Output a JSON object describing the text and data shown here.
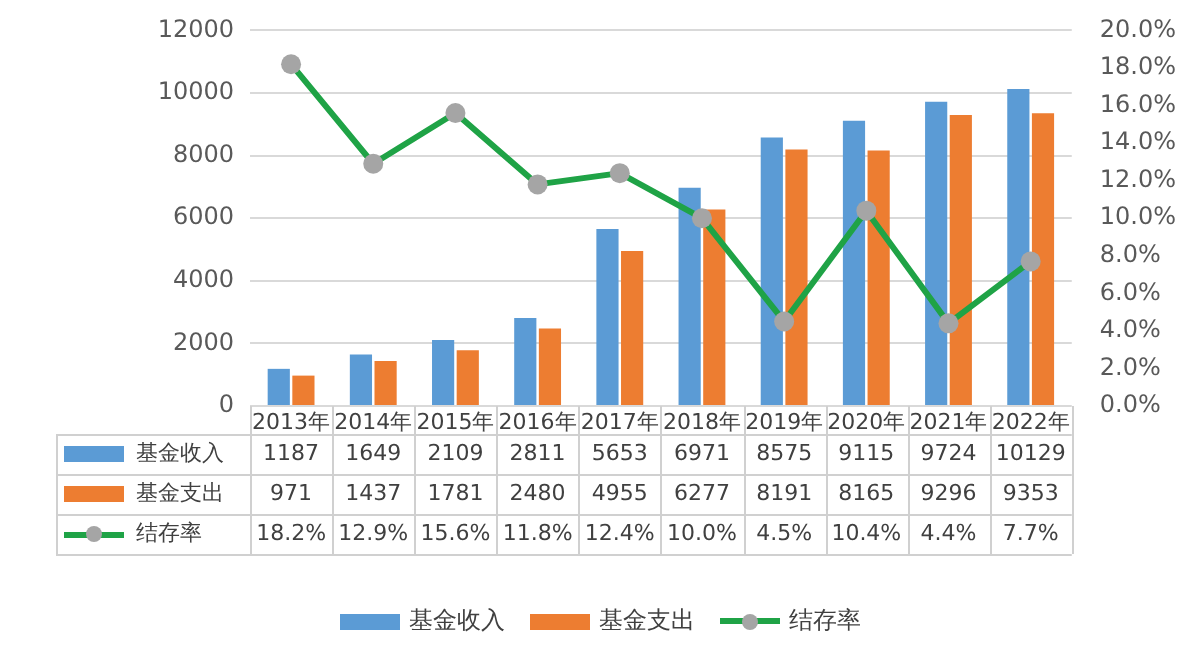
{
  "chart_data": {
    "type": "bar",
    "categories": [
      "2013年",
      "2014年",
      "2015年",
      "2016年",
      "2017年",
      "2018年",
      "2019年",
      "2020年",
      "2021年",
      "2022年"
    ],
    "series": [
      {
        "name": "基金收入",
        "color": "#5b9bd5",
        "values": [
          1187,
          1649,
          2109,
          2811,
          5653,
          6971,
          8575,
          9115,
          9724,
          10129
        ],
        "value_labels": [
          "1187",
          "1649",
          "2109",
          "2811",
          "5653",
          "6971",
          "8575",
          "9115",
          "9724",
          "10129"
        ]
      },
      {
        "name": "基金支出",
        "color": "#ed7d31",
        "values": [
          971,
          1437,
          1781,
          2480,
          4955,
          6277,
          8191,
          8165,
          9296,
          9353
        ],
        "value_labels": [
          "971",
          "1437",
          "1781",
          "2480",
          "4955",
          "6277",
          "8191",
          "8165",
          "9296",
          "9353"
        ]
      },
      {
        "name": "结存率",
        "type": "line",
        "axis": "y2",
        "color": "#1fa346",
        "marker": "circle",
        "values": [
          18.2,
          12.9,
          15.6,
          11.8,
          12.4,
          10.0,
          4.5,
          10.4,
          4.4,
          7.7
        ],
        "value_labels": [
          "18.2%",
          "12.9%",
          "15.6%",
          "11.8%",
          "12.4%",
          "10.0%",
          "4.5%",
          "10.4%",
          "4.4%",
          "7.7%"
        ]
      }
    ],
    "ylim": [
      0,
      12000
    ],
    "yticks": [
      0,
      2000,
      4000,
      6000,
      8000,
      10000,
      12000
    ],
    "y2lim": [
      0,
      20
    ],
    "y2ticks": [
      {
        "value": 0,
        "label": "0.0%"
      },
      {
        "value": 2,
        "label": "2.0%"
      },
      {
        "value": 4,
        "label": "4.0%"
      },
      {
        "value": 6,
        "label": "6.0%"
      },
      {
        "value": 8,
        "label": "8.0%"
      },
      {
        "value": 10,
        "label": "10.0%"
      },
      {
        "value": 12,
        "label": "12.0%"
      },
      {
        "value": 14,
        "label": "14.0%"
      },
      {
        "value": 16,
        "label": "16.0%"
      },
      {
        "value": 18,
        "label": "18.0%"
      },
      {
        "value": 20,
        "label": "20.0%"
      }
    ],
    "grid": "y",
    "legend": "bottom"
  }
}
